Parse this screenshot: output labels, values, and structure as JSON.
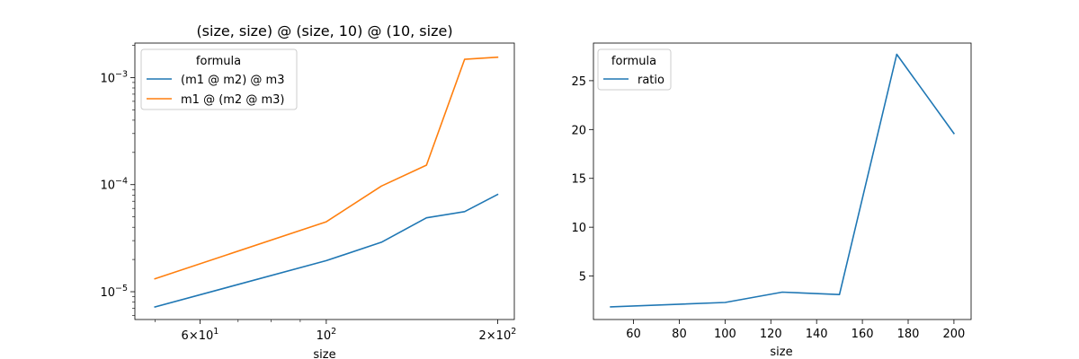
{
  "chart_data": [
    {
      "type": "line",
      "title": "(size, size) @ (size, 10) @ (10, size)",
      "xlabel": "size",
      "ylabel": "",
      "xscale": "log",
      "yscale": "log",
      "xlim": [
        46.1,
        214
      ],
      "ylim": [
        5.5e-06,
        0.0021
      ],
      "xticks_major": [
        {
          "value": 60,
          "base": "6×10",
          "exp": "1"
        },
        {
          "value": 100,
          "base": "10",
          "exp": "2"
        },
        {
          "value": 200,
          "base": "2×10",
          "exp": "2"
        }
      ],
      "xticks_minor": [
        50,
        70,
        80,
        90,
        300
      ],
      "yticks_major": [
        {
          "value": 1e-05,
          "base": "10",
          "exp": "−5"
        },
        {
          "value": 0.0001,
          "base": "10",
          "exp": "−4"
        },
        {
          "value": 0.001,
          "base": "10",
          "exp": "−3"
        }
      ],
      "legend": {
        "title": "formula",
        "location": "top-left"
      },
      "x": [
        50,
        100,
        125,
        150,
        175,
        200
      ],
      "series": [
        {
          "name": "(m1 @ m2) @ m3",
          "color": "#1f77b4",
          "values": [
            7.2e-06,
            1.95e-05,
            2.9e-05,
            4.9e-05,
            5.6e-05,
            8.1e-05
          ]
        },
        {
          "name": "m1 @ (m2 @ m3)",
          "color": "#ff7f0e",
          "values": [
            1.32e-05,
            4.5e-05,
            9.7e-05,
            0.000152,
            0.00148,
            0.00155
          ]
        }
      ]
    },
    {
      "type": "line",
      "title": "",
      "xlabel": "size",
      "ylabel": "",
      "xscale": "linear",
      "yscale": "linear",
      "xlim": [
        42.5,
        207.5
      ],
      "ylim": [
        0.55,
        28.85
      ],
      "xticks": [
        60,
        80,
        100,
        120,
        140,
        160,
        180,
        200
      ],
      "yticks": [
        5,
        10,
        15,
        20,
        25
      ],
      "legend": {
        "title": "formula",
        "location": "top-left"
      },
      "x": [
        50,
        100,
        125,
        150,
        175,
        200
      ],
      "series": [
        {
          "name": "ratio",
          "color": "#1f77b4",
          "values": [
            1.85,
            2.3,
            3.35,
            3.1,
            27.7,
            19.6
          ]
        }
      ]
    }
  ]
}
